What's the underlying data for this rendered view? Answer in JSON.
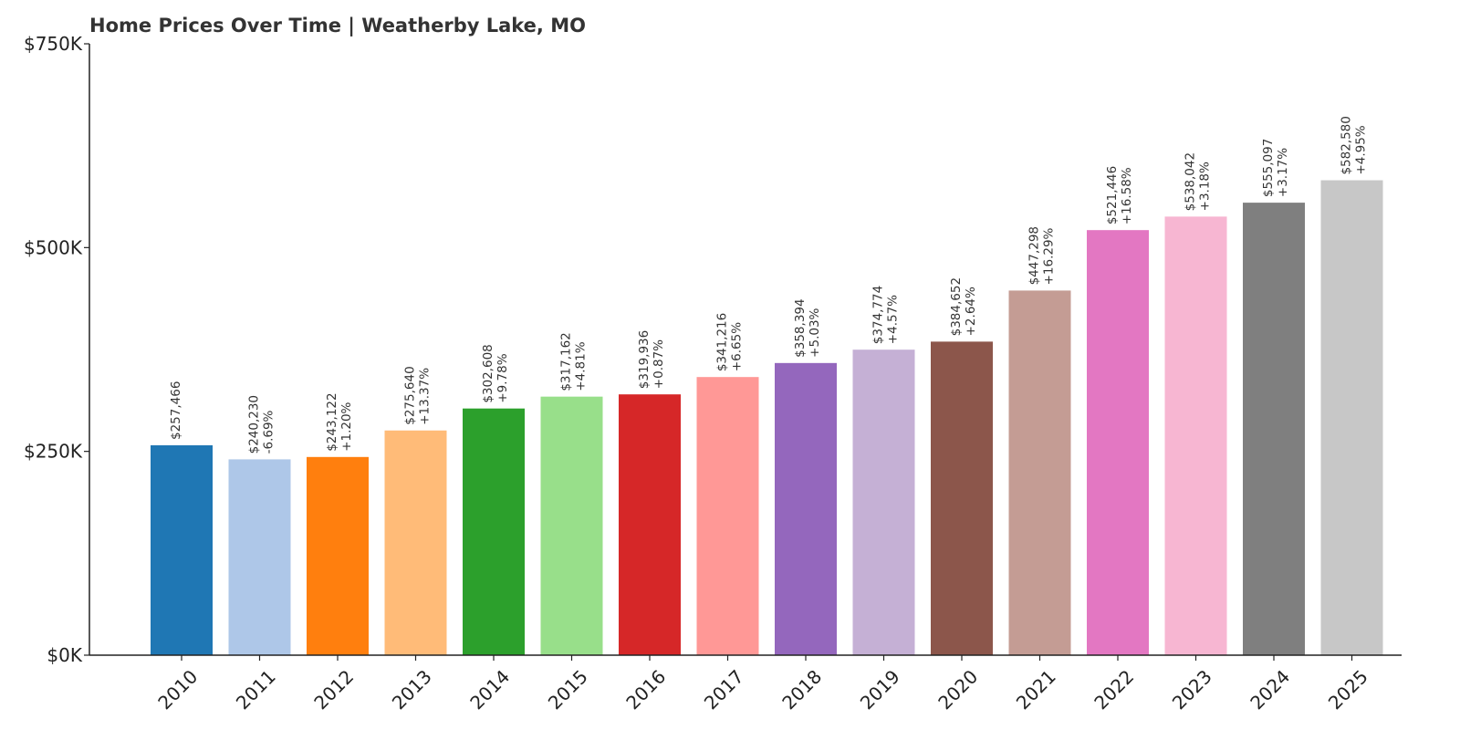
{
  "chart_data": {
    "type": "bar",
    "title": "Home Prices Over Time | Weatherby Lake, MO",
    "xlabel": "",
    "ylabel": "",
    "ylim": [
      0,
      750000
    ],
    "yticks": [
      {
        "value": 0,
        "label": "$0K"
      },
      {
        "value": 250000,
        "label": "$250K"
      },
      {
        "value": 500000,
        "label": "$500K"
      },
      {
        "value": 750000,
        "label": "$750K"
      }
    ],
    "grid": false,
    "legend": "none",
    "categories": [
      "2010",
      "2011",
      "2012",
      "2013",
      "2014",
      "2015",
      "2016",
      "2017",
      "2018",
      "2019",
      "2020",
      "2021",
      "2022",
      "2023",
      "2024",
      "2025"
    ],
    "values": [
      257466,
      240230,
      243122,
      275640,
      302608,
      317162,
      319936,
      341216,
      358394,
      374774,
      384652,
      447298,
      521446,
      538042,
      555097,
      582580
    ],
    "value_labels": [
      "$257,466",
      "$240,230",
      "$243,122",
      "$275,640",
      "$302,608",
      "$317,162",
      "$319,936",
      "$341,216",
      "$358,394",
      "$374,774",
      "$384,652",
      "$447,298",
      "$521,446",
      "$538,042",
      "$555,097",
      "$582,580"
    ],
    "change_labels": [
      "",
      "-6.69%",
      "+1.20%",
      "+13.37%",
      "+9.78%",
      "+4.81%",
      "+0.87%",
      "+6.65%",
      "+5.03%",
      "+4.57%",
      "+2.64%",
      "+16.29%",
      "+16.58%",
      "+3.18%",
      "+3.17%",
      "+4.95%"
    ],
    "colors": [
      "#1f77b4",
      "#aec7e8",
      "#ff7f0e",
      "#ffbb78",
      "#2ca02c",
      "#98df8a",
      "#d62728",
      "#ff9896",
      "#9467bd",
      "#c5b0d5",
      "#8c564b",
      "#c49c94",
      "#e377c2",
      "#f7b6d2",
      "#7f7f7f",
      "#c7c7c7"
    ]
  }
}
